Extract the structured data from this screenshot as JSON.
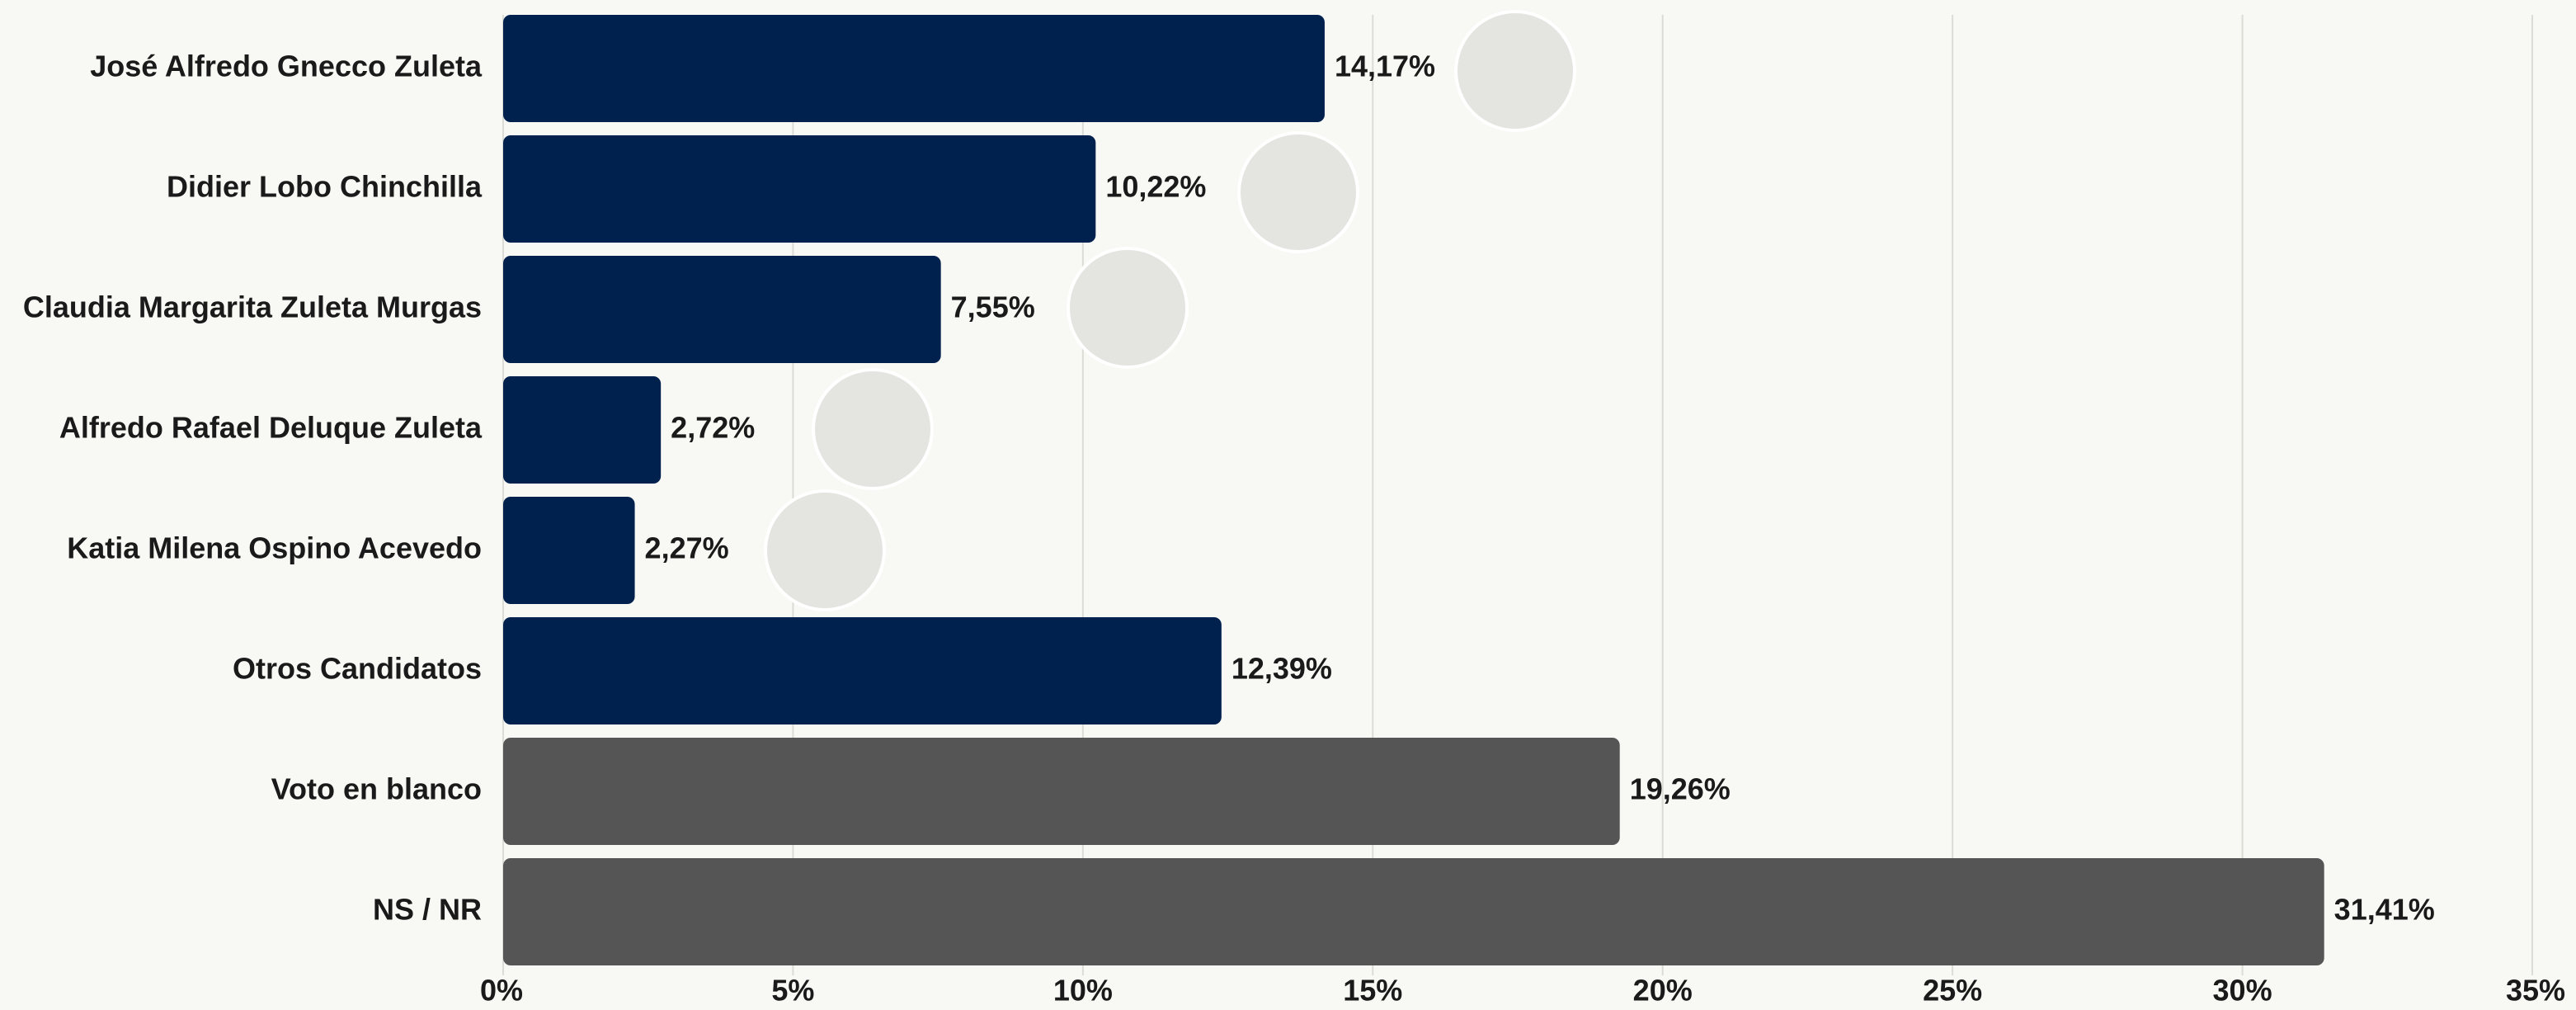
{
  "chart_data": {
    "type": "barh",
    "categories": [
      "José Alfredo Gnecco Zuleta",
      "Didier Lobo Chinchilla",
      "Claudia Margarita Zuleta Murgas",
      "Alfredo Rafael Deluque Zuleta",
      "Katia Milena Ospino Acevedo",
      "Otros Candidatos",
      "Voto en blanco",
      "NS / NR"
    ],
    "values": [
      14.17,
      10.22,
      7.55,
      2.72,
      2.27,
      12.39,
      19.26,
      31.41
    ],
    "value_labels": [
      "14,17%",
      "10,22%",
      "7,55%",
      "2,72%",
      "2,27%",
      "12,39%",
      "19,26%",
      "31,41%"
    ],
    "colors": [
      "#00204e",
      "#00204e",
      "#00204e",
      "#00204e",
      "#00204e",
      "#00204e",
      "#555555",
      "#555555"
    ],
    "xlim": [
      0,
      35
    ],
    "xticks": [
      {
        "value": 0,
        "label": "0%"
      },
      {
        "value": 5,
        "label": "5%"
      },
      {
        "value": 10,
        "label": "10%"
      },
      {
        "value": 15,
        "label": "15%"
      },
      {
        "value": 20,
        "label": "20%"
      },
      {
        "value": 25,
        "label": "25%"
      },
      {
        "value": 30,
        "label": "30%"
      },
      {
        "value": 35,
        "label": "35%"
      }
    ],
    "grid": true
  }
}
